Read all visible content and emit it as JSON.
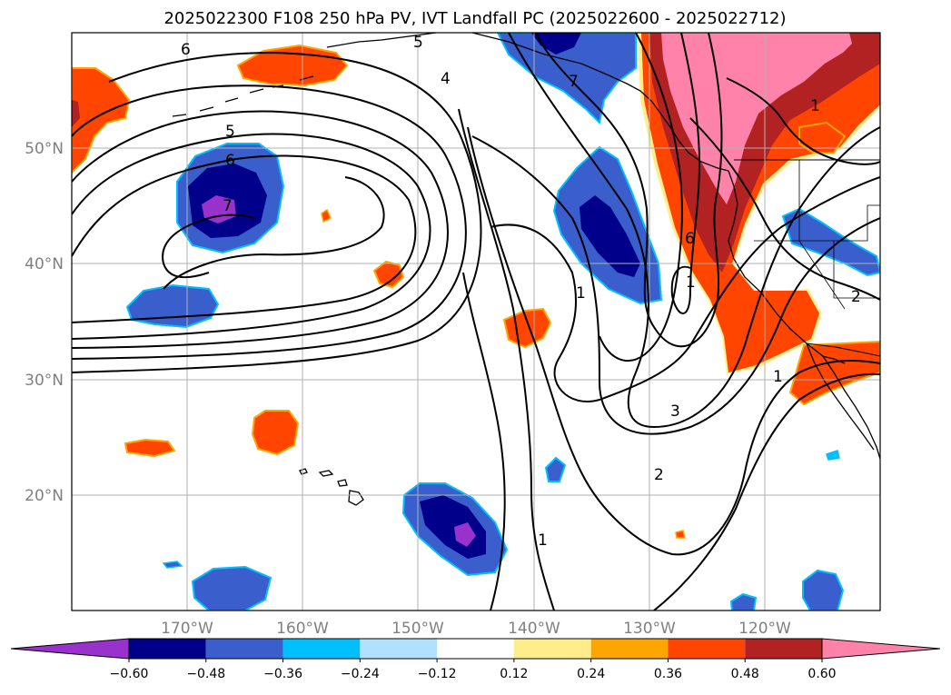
{
  "title": "2025022300 F108 250 hPa PV, IVT Landfall PC (2025022600 - 2025022712)",
  "map": {
    "lon_range": [
      -180,
      -110
    ],
    "lat_range": [
      10,
      60
    ],
    "x_ticks": [
      {
        "lon": -170,
        "label": "170°W"
      },
      {
        "lon": -160,
        "label": "160°W"
      },
      {
        "lon": -150,
        "label": "150°W"
      },
      {
        "lon": -140,
        "label": "140°W"
      },
      {
        "lon": -130,
        "label": "130°W"
      },
      {
        "lon": -120,
        "label": "120°W"
      }
    ],
    "y_ticks": [
      {
        "lat": 50,
        "label": "50°N"
      },
      {
        "lat": 40,
        "label": "40°N"
      },
      {
        "lat": 30,
        "label": "30°N"
      },
      {
        "lat": 20,
        "label": "20°N"
      }
    ],
    "grid": true
  },
  "colorbar": {
    "extend": "both",
    "levels": [
      -0.72,
      -0.6,
      -0.48,
      -0.36,
      -0.24,
      -0.12,
      0.12,
      0.24,
      0.36,
      0.48,
      0.6,
      0.72
    ],
    "colors": [
      "#9932CC",
      "#00008B",
      "#3A5FCD",
      "#00BFFF",
      "#B0E2FF",
      "#FFFFFF",
      "#FFEC8B",
      "#FFA500",
      "#FF4500",
      "#B22222",
      "#FF82AB"
    ],
    "tick_labels": [
      "−0.60",
      "−0.48",
      "−0.36",
      "−0.24",
      "−0.12",
      "0.12",
      "0.24",
      "0.36",
      "0.48",
      "0.60"
    ]
  },
  "pv_contour_labels": [
    "6",
    "5",
    "4",
    "7",
    "6",
    "5",
    "7",
    "1",
    "1",
    "6",
    "3",
    "2",
    "1",
    "1",
    "2",
    "1"
  ]
}
